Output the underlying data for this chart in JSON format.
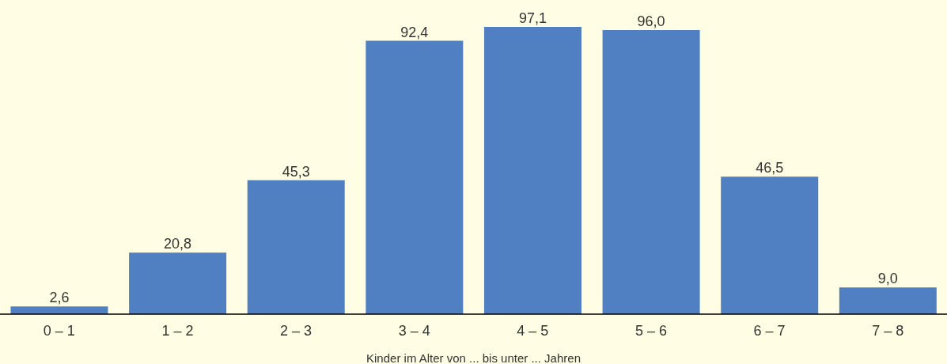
{
  "chart_data": {
    "type": "bar",
    "xlabel": "Kinder im Alter von ... bis unter ... Jahren",
    "categories": [
      "0 – 1",
      "1 – 2",
      "2 – 3",
      "3 – 4",
      "4 – 5",
      "5 – 6",
      "6 – 7",
      "7 – 8"
    ],
    "values": [
      2.6,
      20.8,
      45.3,
      92.4,
      97.1,
      96.0,
      46.5,
      9.0
    ],
    "value_labels": [
      "2,6",
      "20,8",
      "45,3",
      "92,4",
      "97,1",
      "96,0",
      "46,5",
      "9,0"
    ],
    "color": "#5180c2",
    "grid": false,
    "legend": false
  }
}
